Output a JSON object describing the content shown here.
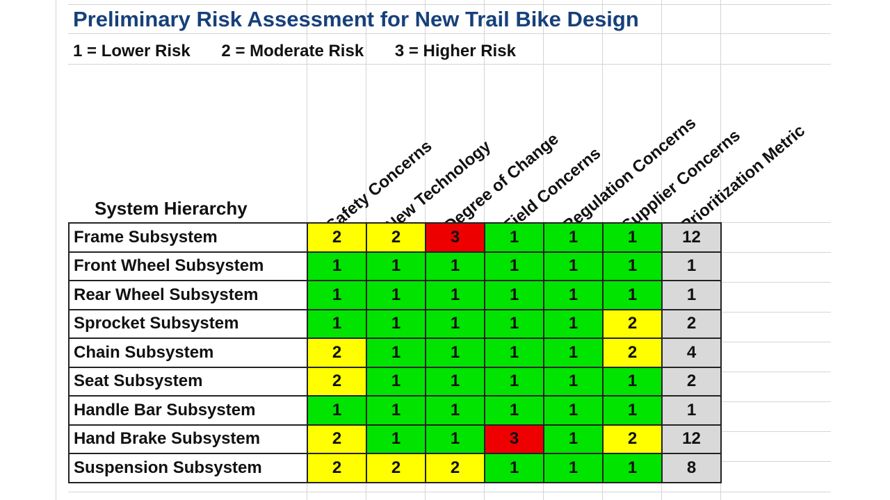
{
  "title": "Preliminary Risk Assessment for New Trail Bike Design",
  "legend": [
    "1 = Lower Risk",
    "2 = Moderate Risk",
    "3 = Higher Risk"
  ],
  "colors": {
    "1": "#00e400",
    "2": "#ffff00",
    "3": "#ee0000",
    "metric": "#d9d9d9",
    "title": "#17407a"
  },
  "row_header": "System Hierarchy",
  "columns": [
    "Safety Concerns",
    "New Technology",
    "Degree of Change",
    "Field Concerns",
    "Regulation Concerns",
    "Supplier Concerns",
    "Prioritization Metric"
  ],
  "rows": [
    {
      "name": "Frame Subsystem",
      "values": [
        2,
        2,
        3,
        1,
        1,
        1
      ],
      "metric": 12
    },
    {
      "name": "Front Wheel Subsystem",
      "values": [
        1,
        1,
        1,
        1,
        1,
        1
      ],
      "metric": 1
    },
    {
      "name": "Rear Wheel Subsystem",
      "values": [
        1,
        1,
        1,
        1,
        1,
        1
      ],
      "metric": 1
    },
    {
      "name": "Sprocket Subsystem",
      "values": [
        1,
        1,
        1,
        1,
        1,
        2
      ],
      "metric": 2
    },
    {
      "name": "Chain Subsystem",
      "values": [
        2,
        1,
        1,
        1,
        1,
        2
      ],
      "metric": 4
    },
    {
      "name": "Seat Subsystem",
      "values": [
        2,
        1,
        1,
        1,
        1,
        1
      ],
      "metric": 2
    },
    {
      "name": "Handle Bar Subsystem",
      "values": [
        1,
        1,
        1,
        1,
        1,
        1
      ],
      "metric": 1
    },
    {
      "name": "Hand Brake Subsystem",
      "values": [
        2,
        1,
        1,
        3,
        1,
        2
      ],
      "metric": 12
    },
    {
      "name": "Suspension Subsystem",
      "values": [
        2,
        2,
        2,
        1,
        1,
        1
      ],
      "metric": 8
    }
  ]
}
